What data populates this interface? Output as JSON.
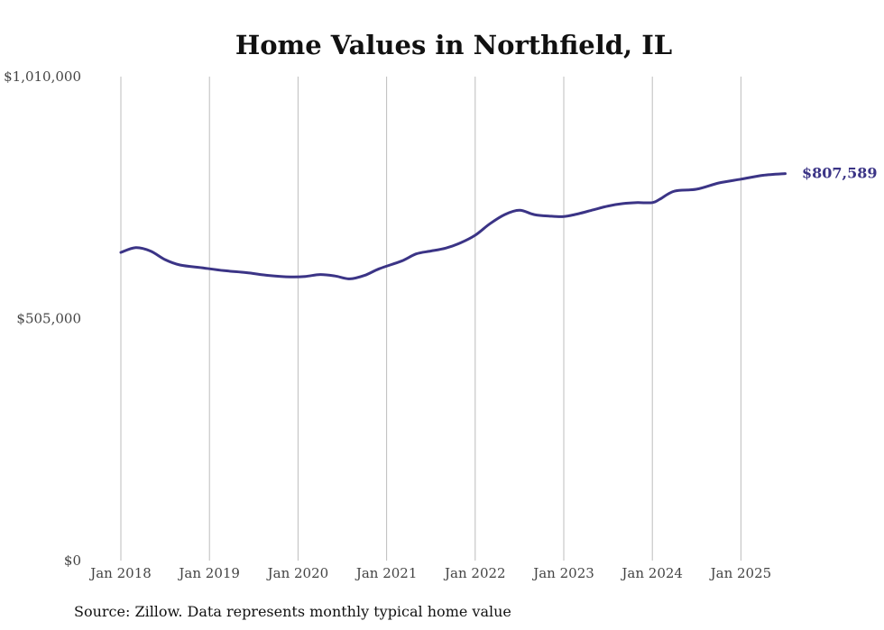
{
  "chart_data": {
    "type": "line",
    "title": "Home Values in Northfield, IL",
    "xlabel": "",
    "ylabel": "",
    "source": "Source: Zillow. Data represents monthly typical home value",
    "ylim": [
      0,
      1010000
    ],
    "y_ticks": [
      {
        "value": 0,
        "label": "$0"
      },
      {
        "value": 505000,
        "label": "$505,000"
      },
      {
        "value": 1010000,
        "label": "$1,010,000"
      }
    ],
    "x_ticks": [
      {
        "value": "2018-01",
        "label": "Jan 2018"
      },
      {
        "value": "2019-01",
        "label": "Jan 2019"
      },
      {
        "value": "2020-01",
        "label": "Jan 2020"
      },
      {
        "value": "2021-01",
        "label": "Jan 2021"
      },
      {
        "value": "2022-01",
        "label": "Jan 2022"
      },
      {
        "value": "2023-01",
        "label": "Jan 2023"
      },
      {
        "value": "2024-01",
        "label": "Jan 2024"
      },
      {
        "value": "2025-01",
        "label": "Jan 2025"
      }
    ],
    "grid": {
      "vertical": true,
      "horizontal": false
    },
    "line_color": "#3b3486",
    "end_label": "$807,589",
    "series": [
      {
        "x": [
          "2018-01",
          "2018-03",
          "2018-05",
          "2018-07",
          "2018-09",
          "2018-12",
          "2019-03",
          "2019-06",
          "2019-09",
          "2019-12",
          "2020-02",
          "2020-04",
          "2020-06",
          "2020-08",
          "2020-10",
          "2020-12",
          "2021-03",
          "2021-05",
          "2021-07",
          "2021-09",
          "2021-11",
          "2022-01",
          "2022-03",
          "2022-05",
          "2022-07",
          "2022-09",
          "2022-11",
          "2023-01",
          "2023-03",
          "2023-05",
          "2023-07",
          "2023-09",
          "2023-11",
          "2024-01",
          "2024-02",
          "2024-04",
          "2024-07",
          "2024-10",
          "2025-01",
          "2025-04",
          "2025-07"
        ],
        "values": [
          643000,
          653000,
          646000,
          628000,
          617000,
          611000,
          605000,
          601000,
          595000,
          592000,
          593000,
          597000,
          594000,
          588000,
          595000,
          609000,
          625000,
          640000,
          646000,
          652000,
          663000,
          679000,
          703000,
          722000,
          731000,
          722000,
          719000,
          718000,
          724000,
          732000,
          740000,
          745000,
          747000,
          747000,
          754000,
          771000,
          775000,
          788000,
          796000,
          804000,
          807589
        ]
      }
    ]
  }
}
